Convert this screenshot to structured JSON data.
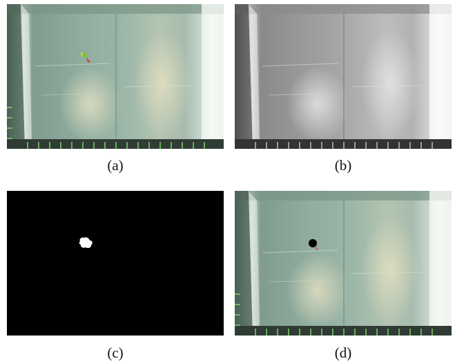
{
  "panels": [
    {
      "id": "a",
      "caption": "(a)",
      "kind": "color-frame"
    },
    {
      "id": "b",
      "caption": "(b)",
      "kind": "grayscale-frame"
    },
    {
      "id": "c",
      "caption": "(c)",
      "kind": "binary-mask"
    },
    {
      "id": "d",
      "caption": "(d)",
      "kind": "color-frame-with-detection-marker"
    }
  ],
  "colors": {
    "tank_tint": "#9fb9ab",
    "tank_bright": "#e8efe6",
    "mask_background": "#000000",
    "mask_blob": "#ffffff",
    "detection_marker": "#000000",
    "fish_body": "#7ac43a",
    "fish_fin": "#d63a3a"
  }
}
